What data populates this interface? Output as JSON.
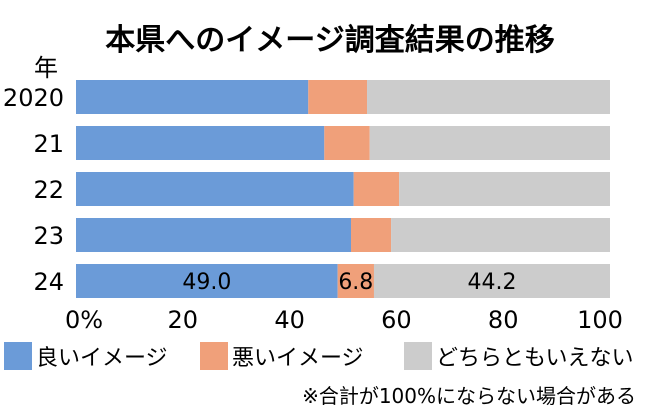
{
  "chart_data": {
    "type": "bar",
    "orientation": "horizontal",
    "stacked": true,
    "title": "本県へのイメージ調査結果の推移",
    "ylabel": "年",
    "categories": [
      "2020",
      "21",
      "22",
      "23",
      "24"
    ],
    "series": [
      {
        "name": "良いイメージ",
        "color": "#6b9bd8",
        "values": [
          43.5,
          46.5,
          52.0,
          51.5,
          49.0
        ]
      },
      {
        "name": "悪いイメージ",
        "color": "#f0a07a",
        "values": [
          11.0,
          8.5,
          8.5,
          7.5,
          6.8
        ]
      },
      {
        "name": "どちらともいえない",
        "color": "#cccccc",
        "values": [
          45.5,
          45.0,
          39.5,
          41.0,
          44.2
        ]
      }
    ],
    "data_labels": {
      "category": "24",
      "values": [
        "49.0",
        "6.8",
        "44.2"
      ]
    },
    "xlim": [
      0,
      100
    ],
    "xticks": [
      "0%",
      "20",
      "40",
      "60",
      "80",
      "100"
    ],
    "note": "※合計が100%にならない場合がある",
    "grid": false,
    "legend": "bottom"
  }
}
